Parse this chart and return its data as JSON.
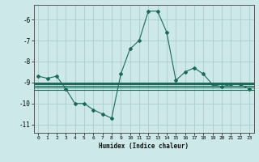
{
  "xlabel": "Humidex (Indice chaleur)",
  "ylabel": "",
  "bg_color": "#cce8e8",
  "grid_color": "#aacccc",
  "line_color": "#1a6b5a",
  "xlim": [
    -0.5,
    23.5
  ],
  "ylim": [
    -11.4,
    -5.3
  ],
  "yticks": [
    -11,
    -10,
    -9,
    -8,
    -7,
    -6
  ],
  "xticks": [
    0,
    1,
    2,
    3,
    4,
    5,
    6,
    7,
    8,
    9,
    10,
    11,
    12,
    13,
    14,
    15,
    16,
    17,
    18,
    19,
    20,
    21,
    22,
    23
  ],
  "main_x": [
    0,
    1,
    2,
    3,
    4,
    5,
    6,
    7,
    8,
    9,
    10,
    11,
    12,
    13,
    14,
    15,
    16,
    17,
    18,
    19,
    20,
    21,
    22,
    23
  ],
  "main_y": [
    -8.7,
    -8.8,
    -8.7,
    -9.3,
    -10.0,
    -10.0,
    -10.3,
    -10.5,
    -10.7,
    -8.6,
    -7.4,
    -7.0,
    -5.6,
    -5.6,
    -6.6,
    -8.9,
    -8.5,
    -8.3,
    -8.6,
    -9.1,
    -9.2,
    -9.1,
    -9.1,
    -9.3
  ],
  "mean_y": -9.1,
  "min_y": -9.35,
  "max_y": -9.0,
  "band1_y": -9.15,
  "band2_y": -9.25
}
